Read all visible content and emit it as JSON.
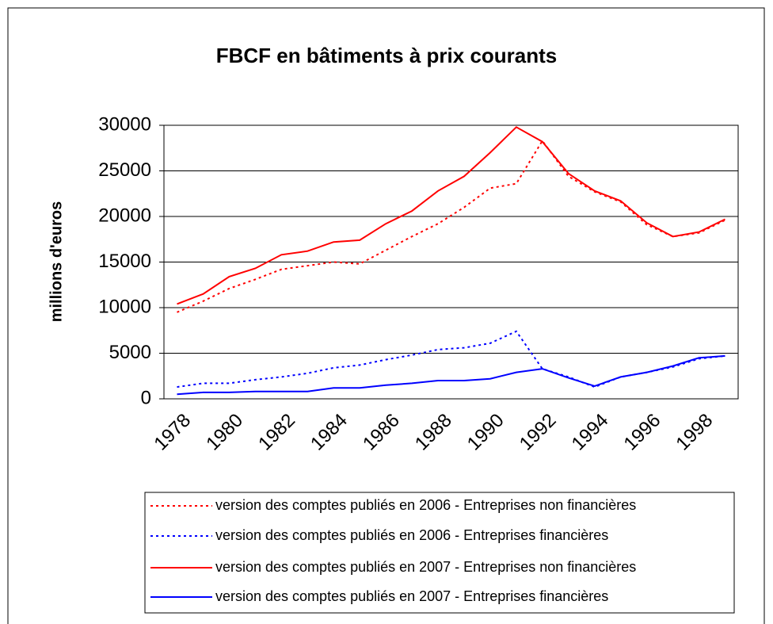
{
  "chart_data": {
    "type": "line",
    "title": "FBCF en bâtiments à prix courants",
    "y_label": "millions d'euros",
    "categories": [
      "1978",
      null,
      "1980",
      null,
      "1982",
      null,
      "1984",
      null,
      "1986",
      null,
      "1988",
      null,
      "1990",
      null,
      "1992",
      null,
      "1994",
      null,
      "1996",
      null,
      "1998",
      null
    ],
    "ylim": [
      0,
      30000
    ],
    "yticks": [
      0,
      5000,
      10000,
      15000,
      20000,
      25000,
      30000
    ],
    "grid": true,
    "legend": "bottom",
    "series": [
      {
        "name": "version des comptes publiés en 2006 - Entreprises non financières",
        "color": "#ff0000",
        "style": "dotted",
        "values": [
          9500,
          10700,
          12100,
          13100,
          14200,
          14600,
          15000,
          14800,
          16300,
          17800,
          19200,
          21000,
          23100,
          23600,
          28300,
          24400,
          22700,
          21600,
          19100,
          17800,
          18200,
          19600
        ]
      },
      {
        "name": "version des comptes publiés en 2006 - Entreprises financières",
        "color": "#0000ff",
        "style": "dotted",
        "values": [
          1300,
          1700,
          1700,
          2100,
          2400,
          2800,
          3400,
          3700,
          4300,
          4800,
          5400,
          5600,
          6100,
          7400,
          3300,
          2400,
          1300,
          2400,
          2900,
          3500,
          4400,
          4700
        ]
      },
      {
        "name": "version des comptes publiés en 2007 - Entreprises non financières",
        "color": "#ff0000",
        "style": "solid",
        "values": [
          10400,
          11500,
          13400,
          14300,
          15800,
          16200,
          17200,
          17400,
          19200,
          20600,
          22800,
          24400,
          27000,
          29800,
          28200,
          24700,
          22800,
          21700,
          19300,
          17800,
          18300,
          19700
        ]
      },
      {
        "name": "version des comptes publiés en 2007 - Entreprises financières",
        "color": "#0000ff",
        "style": "solid",
        "values": [
          500,
          700,
          700,
          800,
          800,
          800,
          1200,
          1200,
          1500,
          1700,
          2000,
          2000,
          2200,
          2900,
          3300,
          2300,
          1400,
          2400,
          2900,
          3600,
          4500,
          4700
        ]
      }
    ]
  }
}
